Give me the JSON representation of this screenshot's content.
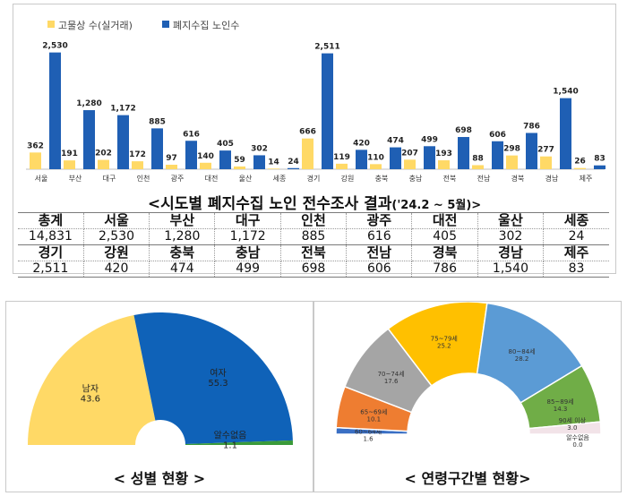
{
  "bar_chart": {
    "title": "<시도별 폐지수집 노인 전수조사 결과",
    "title_period": "('24.2 ~ 5월)>",
    "legend": [
      {
        "name": "고물상 수(실거래)",
        "color": "#ffd966"
      },
      {
        "name": "폐지수집 노인수",
        "color": "#1f5fb4"
      }
    ]
  },
  "table": {
    "rows": [
      [
        "총계",
        "서울",
        "부산",
        "대구",
        "인천",
        "광주",
        "대전",
        "울산",
        "세종"
      ],
      [
        "14,831",
        "2,530",
        "1,280",
        "1,172",
        "885",
        "616",
        "405",
        "302",
        "24"
      ],
      [
        "경기",
        "강원",
        "충북",
        "충남",
        "전북",
        "전남",
        "경북",
        "경남",
        "제주"
      ],
      [
        "2,511",
        "420",
        "474",
        "499",
        "698",
        "606",
        "786",
        "1,540",
        "83"
      ]
    ]
  },
  "gender": {
    "caption": "< 성별 현황 >",
    "slices": [
      {
        "label": "남자",
        "value": 43.6,
        "value_text": "43.6",
        "color": "#ffd966"
      },
      {
        "label": "여자",
        "value": 55.3,
        "value_text": "55.3",
        "color": "#0f62b8"
      },
      {
        "label": "알수없음",
        "value": 1.1,
        "value_text": "1.1",
        "color": "#3a9a3a"
      }
    ]
  },
  "age": {
    "caption": "< 연령구간별 현황>",
    "slices": [
      {
        "label": "60~64세",
        "value": 1.6,
        "value_text": "1.6",
        "color": "#3a6fc4"
      },
      {
        "label": "65~69세",
        "value": 10.1,
        "value_text": "10.1",
        "color": "#ee7d31"
      },
      {
        "label": "70~74세",
        "value": 17.6,
        "value_text": "17.6",
        "color": "#a5a5a5"
      },
      {
        "label": "75~79세",
        "value": 25.2,
        "value_text": "25.2",
        "color": "#ffc000"
      },
      {
        "label": "80~84세",
        "value": 28.2,
        "value_text": "28.2",
        "color": "#5b9bd5"
      },
      {
        "label": "85~89세",
        "value": 14.3,
        "value_text": "14.3",
        "color": "#70ad47"
      },
      {
        "label": "90세 이상",
        "value": 3.0,
        "value_text": "3.0",
        "color": "#f2e3e8"
      },
      {
        "label": "알수없음",
        "value": 0.0,
        "value_text": "0.0",
        "color": "#cccccc"
      }
    ]
  },
  "chart_data": [
    {
      "type": "bar",
      "title": "<시도별 폐지수집 노인 전수조사 결과('24.2 ~ 5월)>",
      "categories": [
        "서울",
        "부산",
        "대구",
        "인천",
        "광주",
        "대전",
        "울산",
        "세종",
        "경기",
        "강원",
        "충북",
        "충남",
        "전북",
        "전남",
        "경북",
        "경남",
        "제주"
      ],
      "series": [
        {
          "name": "고물상 수(실거래)",
          "color": "#ffd966",
          "values": [
            362,
            191,
            202,
            172,
            97,
            140,
            59,
            14,
            666,
            119,
            110,
            207,
            193,
            88,
            298,
            277,
            26
          ]
        },
        {
          "name": "폐지수집 노인수",
          "color": "#1f5fb4",
          "values": [
            2530,
            1280,
            1172,
            885,
            616,
            405,
            302,
            24,
            2511,
            420,
            474,
            499,
            698,
            606,
            786,
            1540,
            83
          ]
        }
      ],
      "ylim": [
        0,
        2600
      ],
      "grid": false,
      "legend": "top-left"
    },
    {
      "type": "pie",
      "title": "< 성별 현황 >",
      "categories": [
        "남자",
        "여자",
        "알수없음"
      ],
      "values": [
        43.6,
        55.3,
        1.1
      ]
    },
    {
      "type": "pie",
      "title": "< 연령구간별 현황>",
      "categories": [
        "60~64세",
        "65~69세",
        "70~74세",
        "75~79세",
        "80~84세",
        "85~89세",
        "90세 이상",
        "알수없음"
      ],
      "values": [
        1.6,
        10.1,
        17.6,
        25.2,
        28.2,
        14.3,
        3.0,
        0.0
      ]
    }
  ]
}
